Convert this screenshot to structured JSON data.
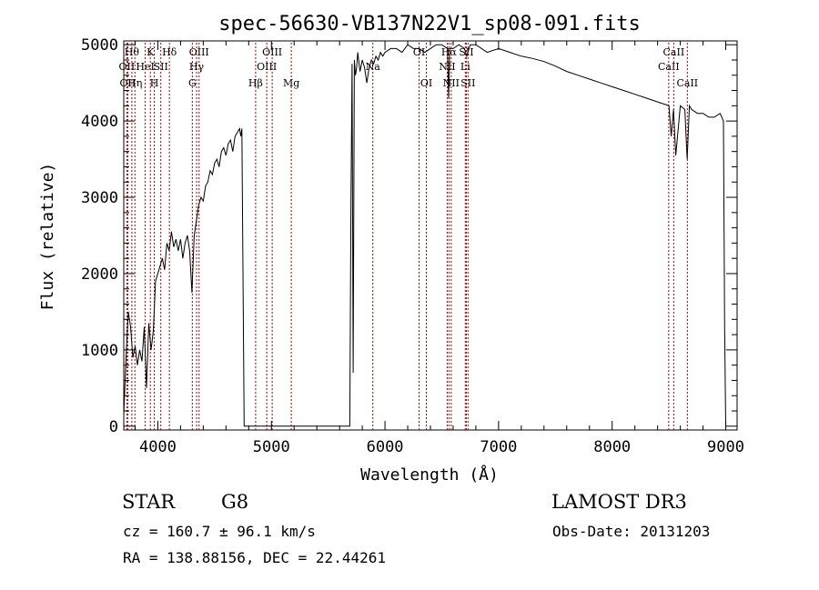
{
  "chart_data": {
    "type": "line",
    "title": "spec-56630-VB137N22V1_sp08-091.fits",
    "xlabel": "Wavelength (Å)",
    "ylabel": "Flux (relative)",
    "xlim": [
      3700,
      9100
    ],
    "ylim": [
      -50,
      5050
    ],
    "xticks": [
      4000,
      5000,
      6000,
      7000,
      8000,
      9000
    ],
    "yticks": [
      0,
      1000,
      2000,
      3000,
      4000,
      5000
    ],
    "grid": false,
    "line_color": "#000000",
    "marker_color": "#b00000",
    "series": [
      {
        "x": [
          3700,
          3720,
          3740,
          3760,
          3780,
          3800,
          3820,
          3840,
          3860,
          3880,
          3900,
          3920,
          3940,
          3960,
          3980,
          4000,
          4020,
          4040,
          4060,
          4080,
          4100,
          4120,
          4140,
          4160,
          4180,
          4200,
          4220,
          4240,
          4260,
          4280,
          4300,
          4320,
          4340,
          4360,
          4380,
          4400,
          4420,
          4440,
          4460,
          4480,
          4500,
          4520,
          4540,
          4560,
          4580,
          4600,
          4620,
          4640,
          4660,
          4680,
          4700,
          4720,
          4730,
          4740,
          4760,
          4800,
          5000,
          5400,
          5690,
          5700,
          5710,
          5720,
          5730,
          5740,
          5750,
          5760,
          5780,
          5800,
          5820,
          5840,
          5860,
          5880,
          5900,
          5920,
          5940,
          5960,
          5980,
          6000,
          6050,
          6100,
          6150,
          6200,
          6250,
          6300,
          6350,
          6400,
          6450,
          6500,
          6550,
          6560,
          6570,
          6600,
          6650,
          6700,
          6720,
          6750,
          6800,
          6900,
          7000,
          7100,
          7200,
          7300,
          7400,
          7500,
          7600,
          7700,
          7800,
          7900,
          8000,
          8100,
          8200,
          8300,
          8400,
          8500,
          8520,
          8540,
          8560,
          8600,
          8640,
          8660,
          8680,
          8700,
          8750,
          8800,
          8850,
          8900,
          8950,
          8980,
          8990,
          9000
        ],
        "y": [
          150,
          900,
          1500,
          1300,
          900,
          1050,
          800,
          1000,
          850,
          1300,
          500,
          1350,
          1000,
          1250,
          1900,
          2000,
          2100,
          2200,
          2050,
          2400,
          2300,
          2550,
          2350,
          2450,
          2300,
          2450,
          2200,
          2400,
          2500,
          2300,
          1750,
          2500,
          2700,
          2900,
          3000,
          2950,
          3150,
          3200,
          3350,
          3300,
          3450,
          3500,
          3400,
          3600,
          3650,
          3550,
          3700,
          3750,
          3600,
          3800,
          3850,
          3900,
          3800,
          3900,
          0,
          0,
          0,
          0,
          0,
          2800,
          4750,
          700,
          4800,
          4600,
          4700,
          4900,
          4650,
          4800,
          4700,
          4500,
          4700,
          4800,
          4750,
          4850,
          4800,
          4900,
          4850,
          4900,
          4950,
          4950,
          4900,
          5000,
          4950,
          4950,
          4900,
          4950,
          5000,
          5000,
          4950,
          4300,
          4950,
          4950,
          5000,
          4950,
          4850,
          5000,
          5000,
          4900,
          4950,
          4900,
          4850,
          4820,
          4780,
          4720,
          4650,
          4600,
          4550,
          4500,
          4450,
          4400,
          4350,
          4300,
          4250,
          4200,
          3800,
          4150,
          3550,
          4200,
          4150,
          3500,
          4200,
          4150,
          4100,
          4100,
          4050,
          4050,
          4100,
          4000,
          1300,
          0
        ]
      }
    ],
    "lines": [
      {
        "w": 3727,
        "label": "OII",
        "row": 2
      },
      {
        "w": 3735,
        "label": "OII",
        "row": 3
      },
      {
        "w": 3771,
        "label": "Hθ",
        "row": 1
      },
      {
        "w": 3798,
        "label": "Hη",
        "row": 3
      },
      {
        "w": 3889,
        "label": "HeI",
        "row": 2
      },
      {
        "w": 3934,
        "label": "K",
        "row": 1
      },
      {
        "w": 3969,
        "label": "H",
        "row": 3
      },
      {
        "w": 4026,
        "label": "SII",
        "row": 2
      },
      {
        "w": 4102,
        "label": "Hδ",
        "row": 1
      },
      {
        "w": 4304,
        "label": "G",
        "row": 3
      },
      {
        "w": 4341,
        "label": "Hγ",
        "row": 2
      },
      {
        "w": 4363,
        "label": "OIII",
        "row": 1
      },
      {
        "w": 4861,
        "label": "Hβ",
        "row": 3
      },
      {
        "w": 4959,
        "label": "OIII",
        "row": 2
      },
      {
        "w": 5007,
        "label": "OIII",
        "row": 1
      },
      {
        "w": 5175,
        "label": "Mg",
        "row": 3
      },
      {
        "w": 5893,
        "label": "Na",
        "row": 2
      },
      {
        "w": 6300,
        "label": "OI",
        "row": 1
      },
      {
        "w": 6364,
        "label": "OI",
        "row": 3
      },
      {
        "w": 6548,
        "label": "NII",
        "row": 2
      },
      {
        "w": 6563,
        "label": "Hα",
        "row": 1
      },
      {
        "w": 6583,
        "label": "NII",
        "row": 3
      },
      {
        "w": 6707,
        "label": "Li",
        "row": 2
      },
      {
        "w": 6716,
        "label": "SII",
        "row": 1
      },
      {
        "w": 6731,
        "label": "SII",
        "row": 3
      },
      {
        "w": 8498,
        "label": "CaII",
        "row": 2
      },
      {
        "w": 8542,
        "label": "CaII",
        "row": 1
      },
      {
        "w": 8662,
        "label": "CaII",
        "row": 3
      }
    ]
  },
  "info": {
    "obj_class": "STAR",
    "subclass": "G8",
    "survey": "LAMOST DR3",
    "cz": "cz = 160.7 ± 96.1 km/s",
    "obs_date": "Obs-Date: 20131203",
    "radec": "RA = 138.88156, DEC =  22.44261"
  }
}
